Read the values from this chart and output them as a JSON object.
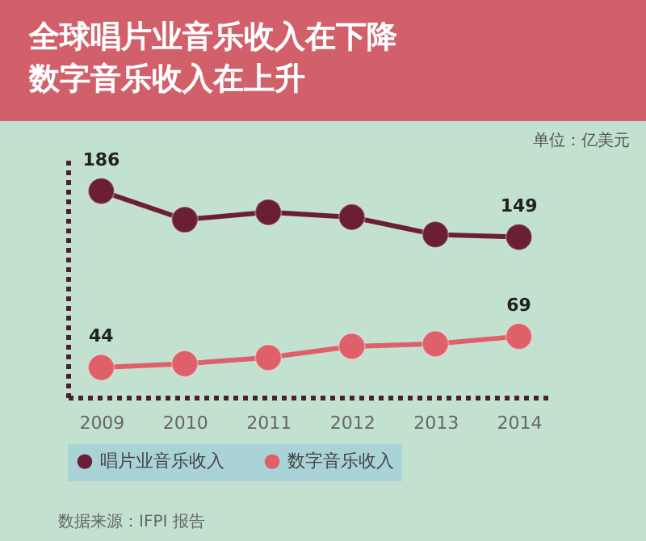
{
  "chart_data": {
    "type": "line",
    "title": "全球唱片业音乐收入在下降",
    "subtitle": "数字音乐收入在上升",
    "categories": [
      "2009",
      "2010",
      "2011",
      "2012",
      "2013",
      "2014"
    ],
    "series": [
      {
        "name": "唱片业音乐收入",
        "color": "#6b1f35",
        "values": [
          186,
          163,
          169,
          165,
          151,
          149
        ],
        "value_labels": [
          "186",
          null,
          null,
          null,
          null,
          "149"
        ]
      },
      {
        "name": "数字音乐收入",
        "color": "#e0606a",
        "values": [
          44,
          47,
          52,
          61,
          63,
          69
        ],
        "value_labels": [
          "44",
          null,
          null,
          null,
          null,
          "69"
        ]
      }
    ],
    "ylim": [
      20,
      215
    ],
    "tick_labels": "x",
    "grid": false,
    "legend": "bottom",
    "marker": "circle",
    "line_style": "solid",
    "annotations": [
      "单位：亿美元",
      "数据来源：IFPI 报告"
    ]
  }
}
